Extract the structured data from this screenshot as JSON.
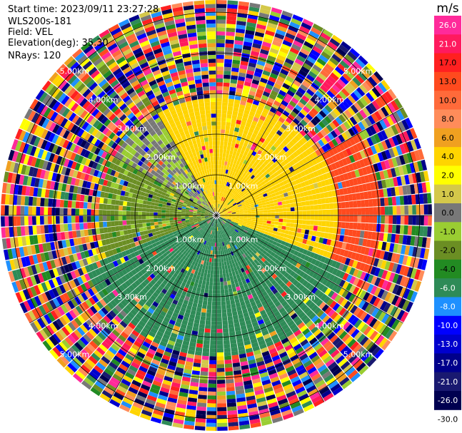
{
  "header": {
    "start_time": "Start time: 2023/09/11 23:27:28",
    "device": "WLS200s-181",
    "field": "Field: VEL",
    "elevation": "Elevation(deg): 35.30",
    "nrays": "NRays: 120"
  },
  "colorbar": {
    "unit": "m/s",
    "ticks": [
      "26.0",
      "21.0",
      "17.0",
      "13.0",
      "10.0",
      "8.0",
      "6.0",
      "4.0",
      "2.0",
      "1.0",
      "0.0",
      "-1.0",
      "-2.0",
      "-4.0",
      "-6.0",
      "-8.0",
      "-10.0",
      "-13.0",
      "-17.0",
      "-21.0",
      "-26.0",
      "-30.0"
    ],
    "colors": [
      "#ff2a9a",
      "#ff1a5e",
      "#ff2020",
      "#ff4a1e",
      "#ff6a3a",
      "#ff8c5a",
      "#f0a020",
      "#ffd400",
      "#ffff00",
      "#d4c84a",
      "#787878",
      "#9acd32",
      "#6b8e23",
      "#228b22",
      "#2e8b57",
      "#1e90ff",
      "#0000ff",
      "#0000cd",
      "#00008b",
      "#191970",
      "#000050",
      "#ffffff"
    ]
  },
  "chart_data": {
    "type": "ppi",
    "field": "VEL",
    "units": "m/s",
    "elevation_deg": 35.3,
    "n_rays": 120,
    "range_rings_km": [
      1.0,
      2.0,
      3.0,
      4.0,
      5.0
    ],
    "ring_labels": [
      "1.00km",
      "2.00km",
      "3.00km",
      "4.00km",
      "5.00km"
    ],
    "max_range_km": 5.3,
    "sectors": [
      {
        "az_from": 330,
        "az_to": 60,
        "r_from_km": 0.0,
        "r_to_km": 2.9,
        "value": 5.0
      },
      {
        "az_from": 0,
        "az_to": 40,
        "r_from_km": 0.0,
        "r_to_km": 1.2,
        "value": 3.0
      },
      {
        "az_from": 60,
        "az_to": 110,
        "r_from_km": 0.0,
        "r_to_km": 3.0,
        "value": 5.0
      },
      {
        "az_from": 60,
        "az_to": 110,
        "r_from_km": 3.0,
        "r_to_km": 4.0,
        "value": 16.0
      },
      {
        "az_from": 110,
        "az_to": 250,
        "r_from_km": 0.0,
        "r_to_km": 3.5,
        "value": -5.0
      },
      {
        "az_from": 250,
        "az_to": 300,
        "r_from_km": 0.0,
        "r_to_km": 2.9,
        "value": -1.5
      },
      {
        "az_from": 300,
        "az_to": 330,
        "r_from_km": 0.0,
        "r_to_km": 2.9,
        "value": 0.0
      }
    ]
  }
}
